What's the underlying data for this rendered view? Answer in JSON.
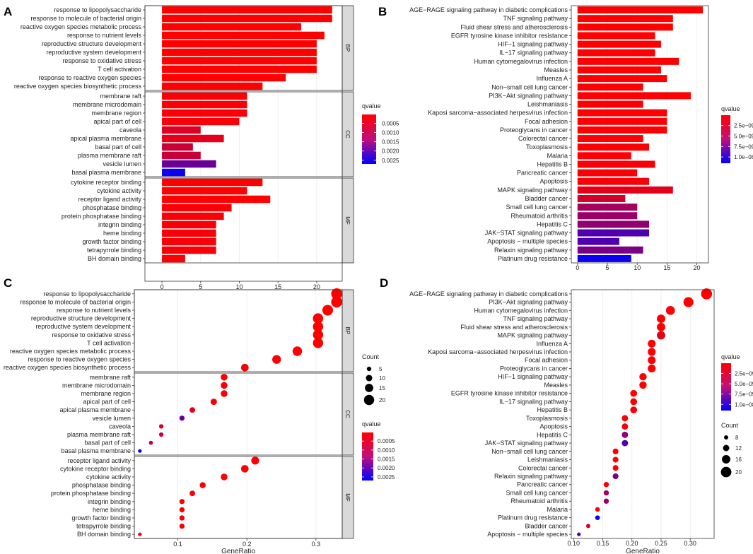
{
  "figure": {
    "gradient_low": "#0000ff",
    "gradient_high": "#ff0000",
    "panel_bg": "#ffffff",
    "strip_bg": "#d9d9d9"
  },
  "chart_data": [
    {
      "id": "A",
      "type": "bar",
      "panel_letter": "A",
      "orientation": "horizontal",
      "xlabel": "",
      "ylabel": "",
      "xlim": [
        -2.2,
        23.3
      ],
      "xticks": [
        0,
        5,
        10,
        15,
        20
      ],
      "facets": [
        {
          "name": "BP",
          "terms": [
            {
              "label": "response to lipopolysaccharide",
              "value": 22,
              "q": 2e-05
            },
            {
              "label": "response to molecule of bacterial origin",
              "value": 22,
              "q": 2e-05
            },
            {
              "label": "reactive oxygen species metabolic process",
              "value": 18,
              "q": 3e-05
            },
            {
              "label": "response to nutrient levels",
              "value": 21,
              "q": 2e-05
            },
            {
              "label": "reproductive structure development",
              "value": 20,
              "q": 2e-05
            },
            {
              "label": "reproductive system development",
              "value": 20,
              "q": 2e-05
            },
            {
              "label": "response to oxidative stress",
              "value": 20,
              "q": 2e-05
            },
            {
              "label": "T cell activation",
              "value": 20,
              "q": 2e-05
            },
            {
              "label": "response to reactive oxygen species",
              "value": 16,
              "q": 4e-05
            },
            {
              "label": "reactive oxygen species biosynthetic process",
              "value": 13,
              "q": 5e-05
            }
          ]
        },
        {
          "name": "CC",
          "terms": [
            {
              "label": "membrane raft",
              "value": 11,
              "q": 8e-05
            },
            {
              "label": "membrane microdomain",
              "value": 11,
              "q": 8e-05
            },
            {
              "label": "membrane region",
              "value": 11,
              "q": 9e-05
            },
            {
              "label": "apical part of cell",
              "value": 10,
              "q": 0.0001
            },
            {
              "label": "caveola",
              "value": 5,
              "q": 0.0004
            },
            {
              "label": "apical plasma membrane",
              "value": 8,
              "q": 0.0003
            },
            {
              "label": "basal part of cell",
              "value": 4,
              "q": 0.0006
            },
            {
              "label": "plasma membrane raft",
              "value": 5,
              "q": 0.0006
            },
            {
              "label": "vesicle lumen",
              "value": 7,
              "q": 0.0016
            },
            {
              "label": "basal plasma membrane",
              "value": 3,
              "q": 0.0026
            }
          ]
        },
        {
          "name": "MF",
          "terms": [
            {
              "label": "cytokine receptor binding",
              "value": 13,
              "q": 3e-05
            },
            {
              "label": "cytokine activity",
              "value": 11,
              "q": 3e-05
            },
            {
              "label": "receptor ligand activity",
              "value": 14,
              "q": 3e-05
            },
            {
              "label": "phosphatase binding",
              "value": 9,
              "q": 8e-05
            },
            {
              "label": "protein phosphatase binding",
              "value": 8,
              "q": 8e-05
            },
            {
              "label": "integrin binding",
              "value": 7,
              "q": 9e-05
            },
            {
              "label": "heme binding",
              "value": 7,
              "q": 9e-05
            },
            {
              "label": "growth factor binding",
              "value": 7,
              "q": 0.0001
            },
            {
              "label": "tetrapyrrole binding",
              "value": 7,
              "q": 0.0001
            },
            {
              "label": "BH domain binding",
              "value": 3,
              "q": 5e-05
            }
          ]
        }
      ],
      "legend": {
        "title": "qvalue",
        "ticks": [
          "0.0005",
          "0.0010",
          "0.0015",
          "0.0020",
          "0.0025"
        ],
        "tick_values": [
          0.0005,
          0.001,
          0.0015,
          0.002,
          0.0025
        ],
        "range": [
          2e-05,
          0.0027
        ]
      }
    },
    {
      "id": "B",
      "type": "bar",
      "panel_letter": "B",
      "orientation": "horizontal",
      "xlabel": "",
      "ylabel": "",
      "xlim": [
        -1.05,
        21.95
      ],
      "xticks": [
        0,
        5,
        10,
        15,
        20
      ],
      "terms": [
        {
          "label": "AGE−RAGE signaling pathway in diabetic complications",
          "value": 21,
          "q": 1e-11
        },
        {
          "label": "TNF signaling pathway",
          "value": 16,
          "q": 3e-11
        },
        {
          "label": "Fluid shear stress and atherosclerosis",
          "value": 16,
          "q": 3e-11
        },
        {
          "label": "EGFR tyrosine kinase inhibitor resistance",
          "value": 13,
          "q": 6e-11
        },
        {
          "label": "HIF−1 signaling pathway",
          "value": 14,
          "q": 6e-11
        },
        {
          "label": "IL−17 signaling pathway",
          "value": 13,
          "q": 6e-11
        },
        {
          "label": "Human cytomegalovirus infection",
          "value": 17,
          "q": 8e-11
        },
        {
          "label": "Measles",
          "value": 14,
          "q": 8e-11
        },
        {
          "label": "Influenza A",
          "value": 15,
          "q": 8e-11
        },
        {
          "label": "Non−small cell lung cancer",
          "value": 11,
          "q": 1e-10
        },
        {
          "label": "PI3K−Akt signaling pathway",
          "value": 19,
          "q": 1e-10
        },
        {
          "label": "Leishmaniasis",
          "value": 11,
          "q": 1.2e-10
        },
        {
          "label": "Kaposi sarcoma−associated herpesvirus infection",
          "value": 15,
          "q": 1.5e-10
        },
        {
          "label": "Focal adhesion",
          "value": 15,
          "q": 1.5e-10
        },
        {
          "label": "Proteoglycans in cancer",
          "value": 15,
          "q": 1.5e-10
        },
        {
          "label": "Colorectal cancer",
          "value": 11,
          "q": 1.8e-10
        },
        {
          "label": "Toxoplasmosis",
          "value": 12,
          "q": 2e-10
        },
        {
          "label": "Malaria",
          "value": 9,
          "q": 2e-10
        },
        {
          "label": "Hepatitis B",
          "value": 13,
          "q": 3e-10
        },
        {
          "label": "Pancreatic cancer",
          "value": 10,
          "q": 3e-10
        },
        {
          "label": "Apoptosis",
          "value": 12,
          "q": 3.5e-10
        },
        {
          "label": "MAPK signaling pathway",
          "value": 16,
          "q": 1.2e-09
        },
        {
          "label": "Bladder cancer",
          "value": 8,
          "q": 2e-09
        },
        {
          "label": "Small cell lung cancer",
          "value": 10,
          "q": 4e-09
        },
        {
          "label": "Rheumatoid arthritis",
          "value": 10,
          "q": 4.5e-09
        },
        {
          "label": "Hepatitis C",
          "value": 12,
          "q": 5e-09
        },
        {
          "label": "JAK−STAT signaling pathway",
          "value": 12,
          "q": 8e-09
        },
        {
          "label": "Apoptosis − multiple species",
          "value": 7,
          "q": 8e-09
        },
        {
          "label": "Relaxin signaling pathway",
          "value": 11,
          "q": 6e-09
        },
        {
          "label": "Platinum drug resistance",
          "value": 9,
          "q": 1.1e-08
        }
      ],
      "legend": {
        "title": "qvalue",
        "ticks": [
          "2.5e−09",
          "5.0e−09",
          "7.5e−09",
          "1.0e−08"
        ],
        "tick_values": [
          2.5e-09,
          5e-09,
          7.5e-09,
          1e-08
        ],
        "range": [
          1e-11,
          1.15e-08
        ]
      }
    },
    {
      "id": "C",
      "type": "scatter",
      "panel_letter": "C",
      "orientation": "dot",
      "xlabel": "GeneRatio",
      "ylabel": "",
      "xlim": [
        0.037,
        0.338
      ],
      "xticks": [
        0.1,
        0.2,
        0.3
      ],
      "size_range": [
        3,
        20
      ],
      "facets": [
        {
          "name": "BP",
          "terms": [
            {
              "label": "response to lipopolysaccharide",
              "x": 0.33,
              "count": 22,
              "q": 2e-05
            },
            {
              "label": "response to molecule of bacterial origin",
              "x": 0.33,
              "count": 22,
              "q": 2e-05
            },
            {
              "label": "response to nutrient levels",
              "x": 0.317,
              "count": 21,
              "q": 2e-05
            },
            {
              "label": "reproductive structure development",
              "x": 0.303,
              "count": 20,
              "q": 2e-05
            },
            {
              "label": "reproductive system development",
              "x": 0.303,
              "count": 20,
              "q": 2e-05
            },
            {
              "label": "response to oxidative stress",
              "x": 0.303,
              "count": 20,
              "q": 2e-05
            },
            {
              "label": "T cell activation",
              "x": 0.303,
              "count": 20,
              "q": 2e-05
            },
            {
              "label": "reactive oxygen species metabolic process",
              "x": 0.273,
              "count": 18,
              "q": 3e-05
            },
            {
              "label": "response to reactive oxygen species",
              "x": 0.243,
              "count": 16,
              "q": 4e-05
            },
            {
              "label": "reactive oxygen species biosynthetic process",
              "x": 0.197,
              "count": 13,
              "q": 5e-05
            }
          ]
        },
        {
          "name": "CC",
          "terms": [
            {
              "label": "membrane raft",
              "x": 0.167,
              "count": 11,
              "q": 8e-05
            },
            {
              "label": "membrane microdomain",
              "x": 0.167,
              "count": 11,
              "q": 8e-05
            },
            {
              "label": "membrane region",
              "x": 0.167,
              "count": 11,
              "q": 9e-05
            },
            {
              "label": "apical part of cell",
              "x": 0.152,
              "count": 10,
              "q": 0.0001
            },
            {
              "label": "apical plasma membrane",
              "x": 0.121,
              "count": 8,
              "q": 0.0003
            },
            {
              "label": "vesicle lumen",
              "x": 0.106,
              "count": 7,
              "q": 0.0016
            },
            {
              "label": "caveola",
              "x": 0.076,
              "count": 5,
              "q": 0.0004
            },
            {
              "label": "plasma membrane raft",
              "x": 0.076,
              "count": 5,
              "q": 0.0006
            },
            {
              "label": "basal part of cell",
              "x": 0.061,
              "count": 4,
              "q": 0.0006
            },
            {
              "label": "basal plasma membrane",
              "x": 0.045,
              "count": 3,
              "q": 0.0026
            }
          ]
        },
        {
          "name": "MF",
          "terms": [
            {
              "label": "receptor ligand activity",
              "x": 0.212,
              "count": 14,
              "q": 3e-05
            },
            {
              "label": "cytokine receptor binding",
              "x": 0.197,
              "count": 13,
              "q": 3e-05
            },
            {
              "label": "cytokine activity",
              "x": 0.167,
              "count": 11,
              "q": 3e-05
            },
            {
              "label": "phosphatase binding",
              "x": 0.136,
              "count": 9,
              "q": 8e-05
            },
            {
              "label": "protein phosphatase binding",
              "x": 0.121,
              "count": 8,
              "q": 8e-05
            },
            {
              "label": "integrin binding",
              "x": 0.106,
              "count": 7,
              "q": 9e-05
            },
            {
              "label": "heme binding",
              "x": 0.106,
              "count": 7,
              "q": 9e-05
            },
            {
              "label": "growth factor binding",
              "x": 0.106,
              "count": 7,
              "q": 0.0001
            },
            {
              "label": "tetrapyrrole binding",
              "x": 0.106,
              "count": 7,
              "q": 0.0001
            },
            {
              "label": "BH domain binding",
              "x": 0.045,
              "count": 3,
              "q": 5e-05
            }
          ]
        }
      ],
      "size_legend": {
        "title": "Count",
        "ticks": [
          "5",
          "10",
          "15",
          "20"
        ],
        "tick_values": [
          5,
          10,
          15,
          20
        ]
      },
      "legend": {
        "title": "qvalue",
        "ticks": [
          "0.0005",
          "0.0010",
          "0.0015",
          "0.0020",
          "0.0025"
        ],
        "tick_values": [
          0.0005,
          0.001,
          0.0015,
          0.002,
          0.0025
        ],
        "range": [
          2e-05,
          0.0027
        ]
      }
    },
    {
      "id": "D",
      "type": "scatter",
      "panel_letter": "D",
      "orientation": "dot",
      "xlabel": "GeneRatio",
      "ylabel": "",
      "xlim": [
        0.096,
        0.341
      ],
      "xticks": [
        0.1,
        0.15,
        0.2,
        0.25,
        0.3
      ],
      "xtick_labels": [
        "0.10",
        "0.15",
        "0.20",
        "0.25",
        "0.30"
      ],
      "size_range": [
        7,
        21
      ],
      "terms": [
        {
          "label": "AGE−RAGE signaling pathway in diabetic complications",
          "x": 0.328,
          "count": 21,
          "q": 1e-11
        },
        {
          "label": "PI3K−Akt signaling pathway",
          "x": 0.297,
          "count": 19,
          "q": 1e-10
        },
        {
          "label": "Human cytomegalovirus infection",
          "x": 0.266,
          "count": 17,
          "q": 8e-11
        },
        {
          "label": "TNF signaling pathway",
          "x": 0.25,
          "count": 16,
          "q": 3e-11
        },
        {
          "label": "Fluid shear stress and atherosclerosis",
          "x": 0.25,
          "count": 16,
          "q": 3e-11
        },
        {
          "label": "MAPK signaling pathway",
          "x": 0.25,
          "count": 16,
          "q": 1.2e-09
        },
        {
          "label": "Influenza A",
          "x": 0.234,
          "count": 15,
          "q": 8e-11
        },
        {
          "label": "Kaposi sarcoma−associated herpesvirus infection",
          "x": 0.234,
          "count": 15,
          "q": 1.5e-10
        },
        {
          "label": "Focal adhesion",
          "x": 0.234,
          "count": 15,
          "q": 1.5e-10
        },
        {
          "label": "Proteoglycans in cancer",
          "x": 0.234,
          "count": 15,
          "q": 1.5e-10
        },
        {
          "label": "HIF−1 signaling pathway",
          "x": 0.219,
          "count": 14,
          "q": 6e-11
        },
        {
          "label": "Measles",
          "x": 0.219,
          "count": 14,
          "q": 8e-11
        },
        {
          "label": "EGFR tyrosine kinase inhibitor resistance",
          "x": 0.203,
          "count": 13,
          "q": 6e-11
        },
        {
          "label": "IL−17 signaling pathway",
          "x": 0.203,
          "count": 13,
          "q": 6e-11
        },
        {
          "label": "Hepatitis B",
          "x": 0.203,
          "count": 13,
          "q": 3e-10
        },
        {
          "label": "Toxoplasmosis",
          "x": 0.188,
          "count": 12,
          "q": 2e-10
        },
        {
          "label": "Apoptosis",
          "x": 0.188,
          "count": 12,
          "q": 3.5e-10
        },
        {
          "label": "Hepatitis C",
          "x": 0.188,
          "count": 12,
          "q": 5e-09
        },
        {
          "label": "JAK−STAT signaling pathway",
          "x": 0.188,
          "count": 12,
          "q": 8e-09
        },
        {
          "label": "Non−small cell lung cancer",
          "x": 0.172,
          "count": 11,
          "q": 1e-10
        },
        {
          "label": "Leishmaniasis",
          "x": 0.172,
          "count": 11,
          "q": 1.2e-10
        },
        {
          "label": "Colorectal cancer",
          "x": 0.172,
          "count": 11,
          "q": 1.8e-10
        },
        {
          "label": "Relaxin signaling pathway",
          "x": 0.172,
          "count": 11,
          "q": 6e-09
        },
        {
          "label": "Pancreatic cancer",
          "x": 0.156,
          "count": 10,
          "q": 3e-10
        },
        {
          "label": "Small cell lung cancer",
          "x": 0.156,
          "count": 10,
          "q": 4e-09
        },
        {
          "label": "Rheumatoid arthritis",
          "x": 0.156,
          "count": 10,
          "q": 4.5e-09
        },
        {
          "label": "Malaria",
          "x": 0.141,
          "count": 9,
          "q": 2e-10
        },
        {
          "label": "Platinum drug resistance",
          "x": 0.141,
          "count": 9,
          "q": 1.1e-08
        },
        {
          "label": "Bladder cancer",
          "x": 0.125,
          "count": 8,
          "q": 2e-09
        },
        {
          "label": "Apoptosis − multiple species",
          "x": 0.109,
          "count": 7,
          "q": 8e-09
        }
      ],
      "size_legend": {
        "title": "Count",
        "ticks": [
          "8",
          "12",
          "16",
          "20"
        ],
        "tick_values": [
          8,
          12,
          16,
          20
        ]
      },
      "legend": {
        "title": "qvalue",
        "ticks": [
          "2.5e−09",
          "5.0e−09",
          "7.5e−09",
          "1.0e−08"
        ],
        "tick_values": [
          2.5e-09,
          5e-09,
          7.5e-09,
          1e-08
        ],
        "range": [
          1e-11,
          1.15e-08
        ]
      }
    }
  ]
}
